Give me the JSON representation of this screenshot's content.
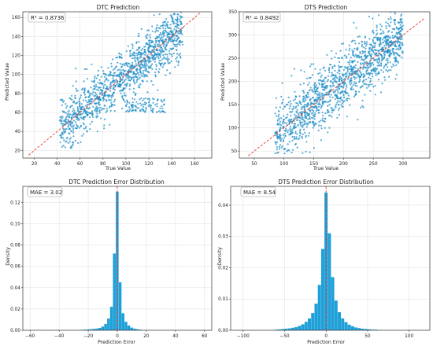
{
  "colors": {
    "scatter": "#1f8fc8",
    "hist": "#1fa0d8",
    "reference": "#e8372c",
    "grid": "#dedede",
    "axis": "#333333"
  },
  "chart_data": [
    {
      "type": "scatter",
      "title": "DTC Prediction",
      "xlabel": "True Value",
      "ylabel": "Predicted Value",
      "annotation": "R² = 0.8736",
      "xlim": [
        10,
        175
      ],
      "ylim": [
        12,
        166
      ],
      "xticks": [
        20,
        40,
        60,
        80,
        100,
        120,
        140,
        160
      ],
      "yticks": [
        20,
        40,
        60,
        80,
        100,
        120,
        140,
        160
      ],
      "reference_line": [
        [
          15,
          15
        ],
        [
          165,
          165
        ]
      ],
      "grid": true,
      "cloud": {
        "x_range": [
          42,
          150
        ],
        "y_spread": 16,
        "outlier_band": {
          "x_range": [
            100,
            135
          ],
          "y_range": [
            60,
            75
          ]
        }
      }
    },
    {
      "type": "scatter",
      "title": "DTS Prediction",
      "xlabel": "True Value",
      "ylabel": "Predicted Value",
      "annotation": "R² = 0.8492",
      "xlim": [
        25,
        345
      ],
      "ylim": [
        35,
        350
      ],
      "xticks": [
        50,
        100,
        150,
        200,
        250,
        300,
        350
      ],
      "yticks": [
        50,
        100,
        150,
        200,
        250,
        300,
        350
      ],
      "reference_line": [
        [
          40,
          40
        ],
        [
          335,
          335
        ]
      ],
      "grid": true,
      "cloud": {
        "x_range": [
          85,
          300
        ],
        "y_spread": 38
      }
    },
    {
      "type": "bar",
      "title": "DTC Prediction Error Distribution",
      "xlabel": "Prediction Error",
      "ylabel": "Density",
      "annotation": "MAE = 3.02",
      "xlim": [
        -65,
        65
      ],
      "ylim": [
        0,
        0.135
      ],
      "xticks": [
        -60,
        -40,
        -20,
        0,
        20,
        40,
        60
      ],
      "yticks": [
        0.0,
        0.02,
        0.04,
        0.06,
        0.08,
        0.1,
        0.12
      ],
      "bin_width": 2,
      "bins": [
        {
          "x": -24,
          "density": 0.0004
        },
        {
          "x": -22,
          "density": 0.0006
        },
        {
          "x": -20,
          "density": 0.0008
        },
        {
          "x": -18,
          "density": 0.001
        },
        {
          "x": -16,
          "density": 0.0013
        },
        {
          "x": -14,
          "density": 0.0016
        },
        {
          "x": -12,
          "density": 0.0022
        },
        {
          "x": -10,
          "density": 0.0035
        },
        {
          "x": -8,
          "density": 0.006
        },
        {
          "x": -6,
          "density": 0.011
        },
        {
          "x": -4,
          "density": 0.022
        },
        {
          "x": -2,
          "density": 0.072
        },
        {
          "x": 0,
          "density": 0.13
        },
        {
          "x": 2,
          "density": 0.045
        },
        {
          "x": 4,
          "density": 0.016
        },
        {
          "x": 6,
          "density": 0.008
        },
        {
          "x": 8,
          "density": 0.0045
        },
        {
          "x": 10,
          "density": 0.0025
        },
        {
          "x": 12,
          "density": 0.0015
        },
        {
          "x": 14,
          "density": 0.001
        },
        {
          "x": 16,
          "density": 0.0006
        }
      ],
      "reference_x": 0,
      "grid": true
    },
    {
      "type": "bar",
      "title": "DTS Prediction Error Distribution",
      "xlabel": "Prediction Error",
      "ylabel": "Density",
      "annotation": "MAE = 8.54",
      "xlim": [
        -115,
        125
      ],
      "ylim": [
        0,
        0.046
      ],
      "xticks": [
        -100,
        -50,
        0,
        50,
        100
      ],
      "yticks": [
        0.0,
        0.01,
        0.02,
        0.03,
        0.04
      ],
      "bin_width": 4,
      "bins": [
        {
          "x": -60,
          "density": 0.0002
        },
        {
          "x": -56,
          "density": 0.0003
        },
        {
          "x": -52,
          "density": 0.0004
        },
        {
          "x": -48,
          "density": 0.0005
        },
        {
          "x": -44,
          "density": 0.0006
        },
        {
          "x": -40,
          "density": 0.0008
        },
        {
          "x": -36,
          "density": 0.001
        },
        {
          "x": -32,
          "density": 0.0014
        },
        {
          "x": -28,
          "density": 0.0019
        },
        {
          "x": -24,
          "density": 0.0027
        },
        {
          "x": -20,
          "density": 0.0038
        },
        {
          "x": -16,
          "density": 0.0055
        },
        {
          "x": -12,
          "density": 0.0085
        },
        {
          "x": -8,
          "density": 0.0145
        },
        {
          "x": -4,
          "density": 0.026
        },
        {
          "x": 0,
          "density": 0.044
        },
        {
          "x": 4,
          "density": 0.031
        },
        {
          "x": 8,
          "density": 0.017
        },
        {
          "x": 12,
          "density": 0.0095
        },
        {
          "x": 16,
          "density": 0.0058
        },
        {
          "x": 20,
          "density": 0.0038
        },
        {
          "x": 24,
          "density": 0.0026
        },
        {
          "x": 28,
          "density": 0.0018
        },
        {
          "x": 32,
          "density": 0.0013
        },
        {
          "x": 36,
          "density": 0.0009
        },
        {
          "x": 40,
          "density": 0.0007
        },
        {
          "x": 44,
          "density": 0.0005
        },
        {
          "x": 48,
          "density": 0.0004
        },
        {
          "x": 52,
          "density": 0.0003
        },
        {
          "x": 56,
          "density": 0.0002
        },
        {
          "x": 60,
          "density": 0.0002
        }
      ],
      "reference_x": 0,
      "grid": true
    }
  ]
}
